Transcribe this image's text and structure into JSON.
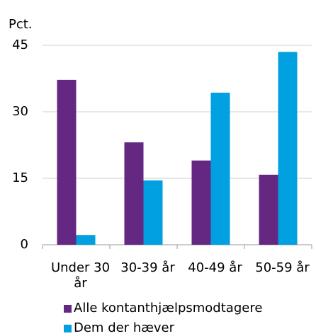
{
  "chart_data": {
    "type": "bar",
    "y_label": "Pct.",
    "categories": [
      "Under 30 år",
      "30-39 år",
      "40-49 år",
      "50-59 år"
    ],
    "series": [
      {
        "name": "Alle kontanthjælpsmodtagere",
        "color": "#642882",
        "values": [
          37.2,
          23.1,
          19.0,
          15.8
        ]
      },
      {
        "name": "Dem der hæver",
        "color": "#00a0e1",
        "values": [
          2.2,
          14.5,
          34.3,
          43.5
        ]
      }
    ],
    "ylim": [
      0,
      45
    ],
    "yticks": [
      0,
      15,
      30,
      45
    ],
    "grid": true
  }
}
